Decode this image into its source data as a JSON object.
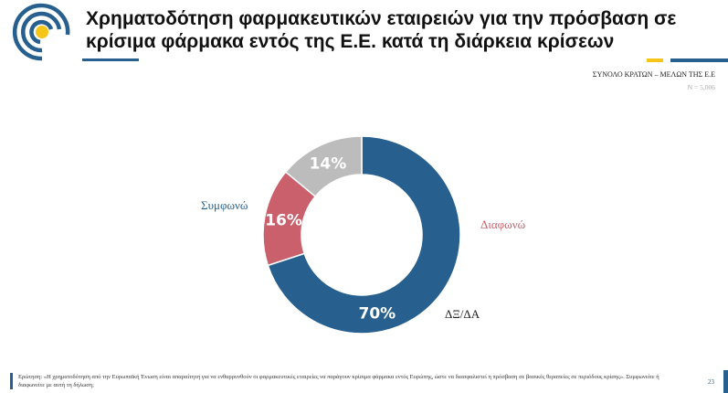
{
  "header": {
    "title": "Χρηματοδότηση φαρμακευτικών εταιρειών για την πρόσβαση σε κρίσιμα φάρμακα εντός της Ε.Ε. κατά τη διάρκεια κρίσεων",
    "subtitle": "ΣΥΝΟΛΟ ΚΡΑΤΩΝ – ΜΕΛΩΝ ΤΗΣ Ε.Ε",
    "sample": "N = 5,006"
  },
  "colors": {
    "blue": "#27608e",
    "red": "#c9606b",
    "grey": "#bcbcbc",
    "yellow": "#f5c518"
  },
  "chart_data": {
    "type": "pie",
    "donut": true,
    "slices": [
      {
        "name": "Συμφωνώ",
        "value": 70,
        "label": "70%",
        "color": "#27608e"
      },
      {
        "name": "Διαφωνώ",
        "value": 16,
        "label": "16%",
        "color": "#c9606b"
      },
      {
        "name": "ΔΞ/ΔΑ",
        "value": 14,
        "label": "14%",
        "color": "#bcbcbc"
      }
    ]
  },
  "footer": {
    "question": "Ερώτηση: «Η χρηματοδότηση από την Ευρωπαϊκή Ένωση είναι απαραίτητη για να ενθαρρυνθούν οι φαρμακευτικές εταιρείες να παράγουν κρίσιμα φάρμακα εντός Ευρώπης, ώστε να διασφαλιστεί η πρόσβαση σε βασικές θεραπείες σε περιόδους κρίσης». Συμφωνείτε ή διαφωνείτε με αυτή τη δήλωση;",
    "page": "23"
  }
}
